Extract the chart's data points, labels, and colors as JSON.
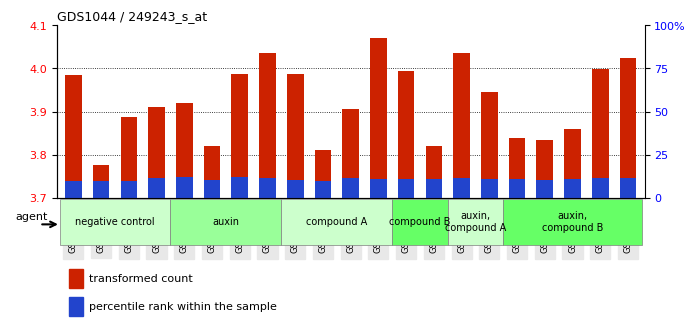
{
  "title": "GDS1044 / 249243_s_at",
  "samples": [
    "GSM25858",
    "GSM25859",
    "GSM25860",
    "GSM25861",
    "GSM25862",
    "GSM25863",
    "GSM25864",
    "GSM25865",
    "GSM25866",
    "GSM25867",
    "GSM25868",
    "GSM25869",
    "GSM25870",
    "GSM25871",
    "GSM25872",
    "GSM25873",
    "GSM25874",
    "GSM25875",
    "GSM25876",
    "GSM25877",
    "GSM25878"
  ],
  "red_values": [
    3.985,
    3.775,
    3.888,
    3.91,
    3.92,
    3.82,
    3.988,
    4.035,
    3.987,
    3.81,
    3.905,
    4.07,
    3.993,
    3.82,
    4.035,
    3.945,
    3.838,
    3.833,
    3.86,
    3.998,
    4.025
  ],
  "blue_values": [
    0.04,
    0.04,
    0.04,
    0.045,
    0.048,
    0.042,
    0.048,
    0.046,
    0.042,
    0.04,
    0.045,
    0.043,
    0.044,
    0.044,
    0.046,
    0.043,
    0.043,
    0.042,
    0.043,
    0.046,
    0.046
  ],
  "ylim_left": [
    3.7,
    4.1
  ],
  "ylim_right": [
    0,
    100
  ],
  "yticks_left": [
    3.7,
    3.8,
    3.9,
    4.0,
    4.1
  ],
  "yticks_right": [
    0,
    25,
    50,
    75,
    100
  ],
  "ytick_labels_right": [
    "0",
    "25",
    "50",
    "75",
    "100%"
  ],
  "red_color": "#CC2200",
  "blue_color": "#2244CC",
  "bar_width": 0.6,
  "groups": [
    {
      "label": "negative control",
      "start": 0,
      "end": 3,
      "color": "#ccffcc"
    },
    {
      "label": "auxin",
      "start": 4,
      "end": 7,
      "color": "#99ff99"
    },
    {
      "label": "compound A",
      "start": 8,
      "end": 11,
      "color": "#ccffcc"
    },
    {
      "label": "compound B",
      "start": 12,
      "end": 13,
      "color": "#66ff66"
    },
    {
      "label": "auxin,\ncompound A",
      "start": 14,
      "end": 15,
      "color": "#ccffcc"
    },
    {
      "label": "auxin,\ncompound B",
      "start": 16,
      "end": 20,
      "color": "#66ff66"
    }
  ],
  "legend_items": [
    {
      "color": "#CC2200",
      "label": "transformed count"
    },
    {
      "color": "#2244CC",
      "label": "percentile rank within the sample"
    }
  ]
}
